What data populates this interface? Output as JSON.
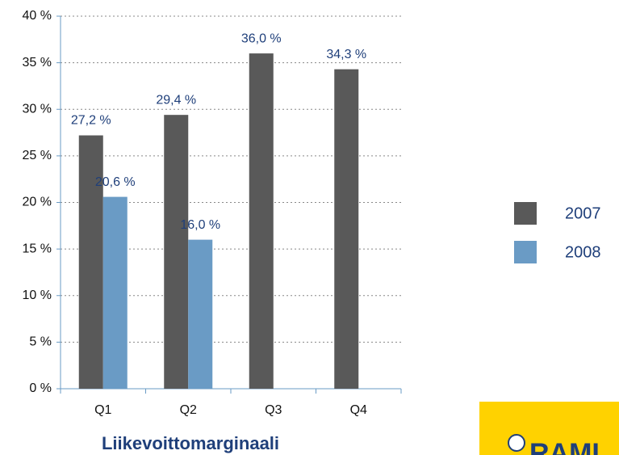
{
  "chart_data": {
    "type": "bar",
    "title": "Liikevoittomarginaali",
    "categories": [
      "Q1",
      "Q2",
      "Q3",
      "Q4"
    ],
    "series": [
      {
        "name": "2007",
        "color": "#595959",
        "values": [
          27.2,
          29.4,
          36.0,
          34.3
        ],
        "value_labels": [
          "27,2 %",
          "29,4 %",
          "36,0 %",
          "34,3 %"
        ]
      },
      {
        "name": "2008",
        "color": "#6a9bc5",
        "values": [
          20.6,
          16.0,
          null,
          null
        ],
        "value_labels": [
          "20,6 %",
          "16,0 %",
          null,
          null
        ]
      }
    ],
    "ylim": [
      0,
      40
    ],
    "yticks": [
      {
        "value": 0,
        "label": "0 %"
      },
      {
        "value": 5,
        "label": "5 %"
      },
      {
        "value": 10,
        "label": "10 %"
      },
      {
        "value": 15,
        "label": "15 %"
      },
      {
        "value": 20,
        "label": "20 %"
      },
      {
        "value": 25,
        "label": "25 %"
      },
      {
        "value": 30,
        "label": "30 %"
      },
      {
        "value": 35,
        "label": "35 %"
      },
      {
        "value": 40,
        "label": "40 %"
      }
    ],
    "grid": true,
    "legend": "right",
    "logo": "RAMI"
  }
}
